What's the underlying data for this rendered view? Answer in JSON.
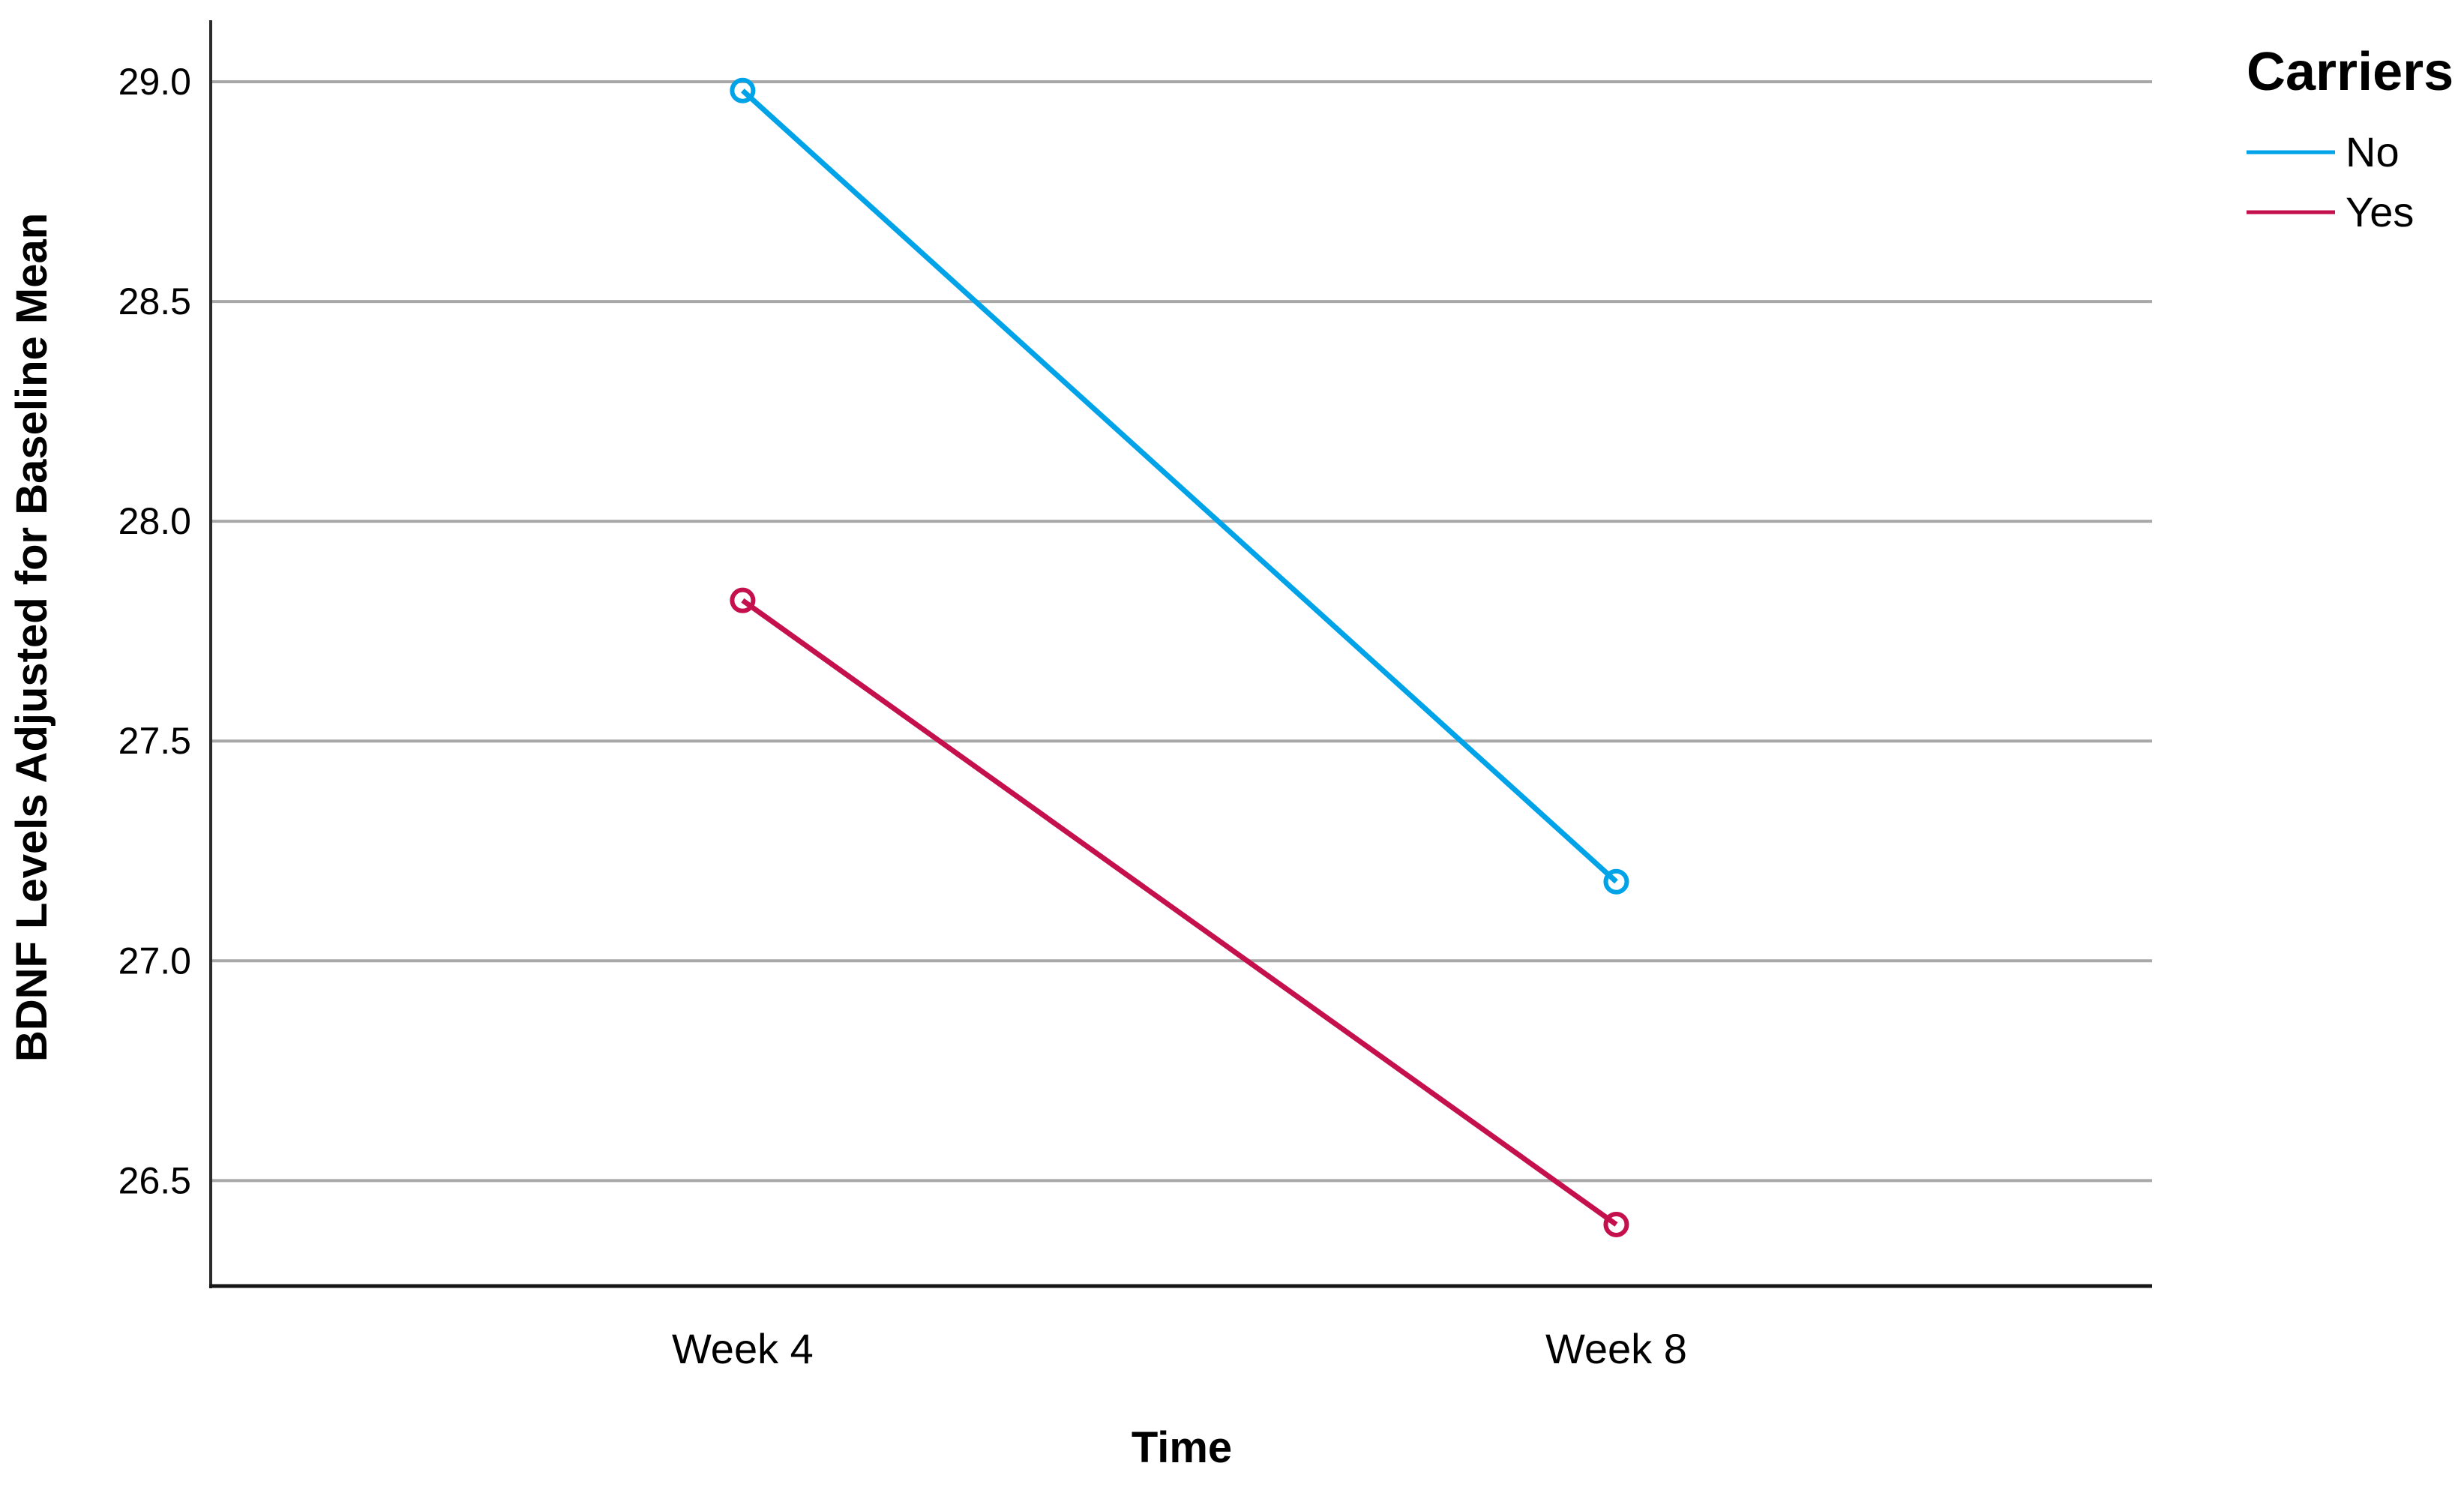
{
  "chart_data": {
    "type": "line",
    "categories": [
      "Week 4",
      "Week 8"
    ],
    "series": [
      {
        "name": "No",
        "values": [
          28.98,
          27.18
        ],
        "color": "#00A3E8"
      },
      {
        "name": "Yes",
        "values": [
          27.82,
          26.4
        ],
        "color": "#C4104C"
      }
    ],
    "title": "",
    "xlabel": "Time",
    "ylabel": "BDNF Levels Adjusted for Baseline Mean",
    "ylim": [
      26.26,
      29.14
    ],
    "yticks": [
      29.0,
      28.5,
      28.0,
      27.5,
      27.0,
      26.5
    ],
    "ytick_labels": [
      "29.0",
      "28.5",
      "28.0",
      "27.5",
      "27.0",
      "26.5"
    ],
    "legend": {
      "title": "Carriers",
      "entries": [
        "No",
        "Yes"
      ],
      "position": "top-right"
    },
    "grid": "horizontal",
    "marker": "open-circle",
    "colors": {
      "gridline": "#A8A8A8",
      "y_axis_line": "#2B2B2B",
      "x_axis_line": "#161616",
      "text": "#000000",
      "background": "#FFFFFF"
    }
  }
}
